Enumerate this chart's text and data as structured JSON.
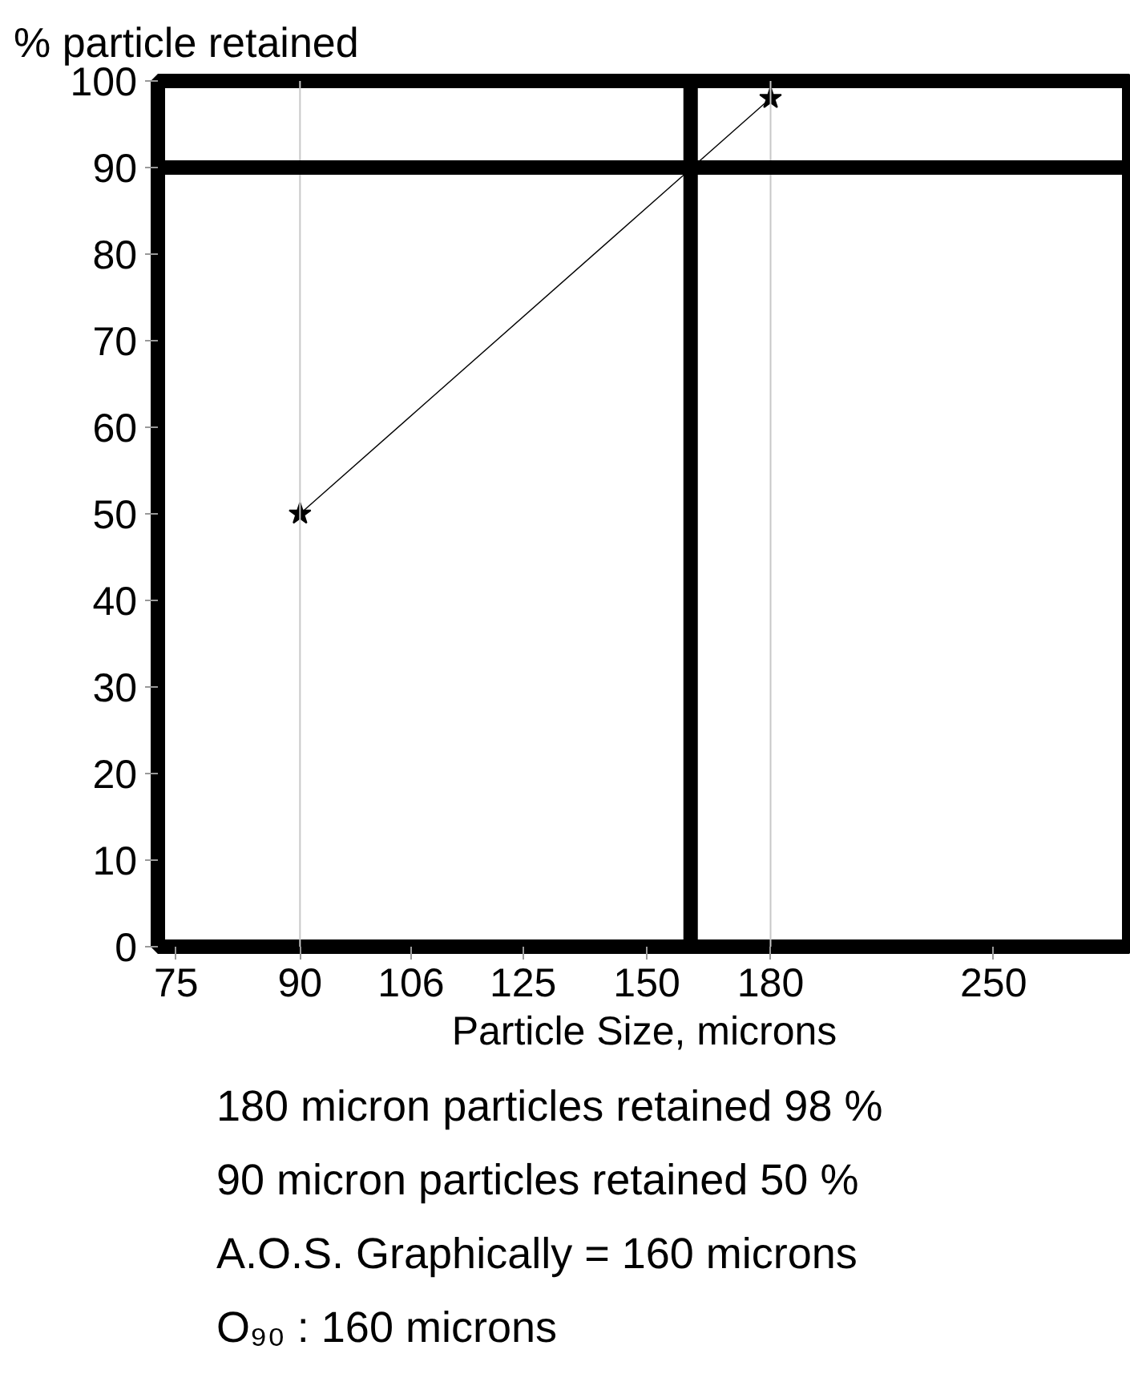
{
  "chart_data": {
    "type": "line",
    "ylabel": "% particle retained",
    "xlabel": "Particle Size, microns",
    "x": [
      90,
      180
    ],
    "values": [
      50,
      98
    ],
    "color": "#000000",
    "marker": "star",
    "line_style": "solid",
    "log": "x",
    "xlim": [
      73,
      306
    ],
    "xticks": [
      75,
      90,
      106,
      125,
      150,
      180,
      250
    ],
    "ylim": [
      0,
      100
    ],
    "yticks": [
      0,
      10,
      20,
      30,
      40,
      50,
      60,
      70,
      80,
      90,
      100
    ],
    "grid": false,
    "ref_lines": [
      {
        "axis": "x",
        "value": 90,
        "color": "#c8c8c8"
      },
      {
        "axis": "x",
        "value": 180,
        "color": "#c8c8c8"
      },
      {
        "axis": "x",
        "value": 160,
        "color": "#000000"
      },
      {
        "axis": "y",
        "value": 90,
        "color": "#000000"
      }
    ],
    "annotations": [
      "180 micron particles retained 98 %",
      "90 micron particles retained 50 %",
      "A.O.S. Graphically = 160 microns",
      "O₉₀ : 160 microns"
    ]
  }
}
